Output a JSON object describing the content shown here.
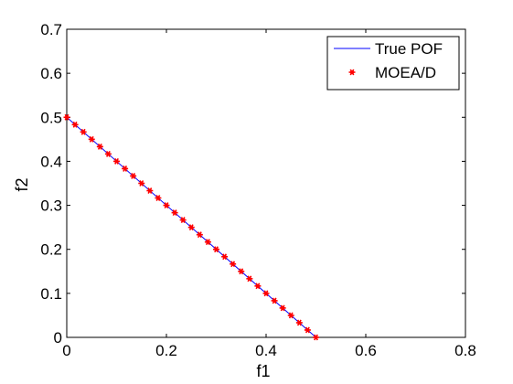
{
  "chart_data": {
    "type": "line",
    "xlabel": "f1",
    "ylabel": "f2",
    "xlim": [
      0,
      0.8
    ],
    "ylim": [
      0,
      0.7
    ],
    "xticks": [
      "0",
      "0.2",
      "0.4",
      "0.6",
      "0.8"
    ],
    "yticks": [
      "0",
      "0.1",
      "0.2",
      "0.3",
      "0.4",
      "0.5",
      "0.6",
      "0.7"
    ],
    "grid": false,
    "legend_position": "top-right",
    "series": [
      {
        "name": "True POF",
        "style": "line",
        "color": "#0000ff",
        "x": [
          0,
          0.5
        ],
        "y": [
          0.5,
          0
        ]
      },
      {
        "name": "MOEA/D",
        "style": "markers",
        "marker": "asterisk",
        "color": "#ff0000",
        "x": [
          0,
          0.0167,
          0.0333,
          0.05,
          0.0667,
          0.0833,
          0.1,
          0.1167,
          0.1333,
          0.15,
          0.1667,
          0.1833,
          0.2,
          0.2167,
          0.2333,
          0.25,
          0.2667,
          0.2833,
          0.3,
          0.3167,
          0.3333,
          0.35,
          0.3667,
          0.3833,
          0.4,
          0.4167,
          0.4333,
          0.45,
          0.4667,
          0.4833,
          0.5
        ],
        "y": [
          0.5,
          0.4833,
          0.4667,
          0.45,
          0.4333,
          0.4167,
          0.4,
          0.3833,
          0.3667,
          0.35,
          0.3333,
          0.3167,
          0.3,
          0.2833,
          0.2667,
          0.25,
          0.2333,
          0.2167,
          0.2,
          0.1833,
          0.1667,
          0.15,
          0.1333,
          0.1167,
          0.1,
          0.0833,
          0.0667,
          0.05,
          0.0333,
          0.0167,
          0
        ]
      }
    ]
  }
}
